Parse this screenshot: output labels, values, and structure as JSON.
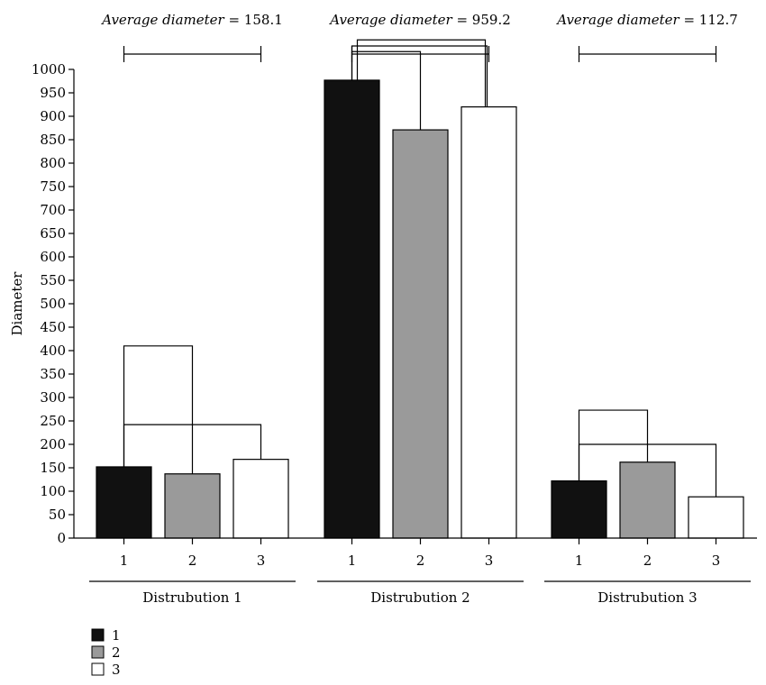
{
  "chart_data": {
    "type": "bar",
    "ylabel": "Diameter",
    "ylim": [
      0,
      1000
    ],
    "yticks": [
      0,
      50,
      100,
      150,
      200,
      250,
      300,
      350,
      400,
      450,
      500,
      550,
      600,
      650,
      700,
      750,
      800,
      850,
      900,
      950,
      1000
    ],
    "categories": [
      "1",
      "2",
      "3"
    ],
    "groups": [
      {
        "name": "Distrubution 1",
        "values": [
          152,
          137,
          168
        ],
        "annotation": {
          "prefix": "Average diameter",
          "value": "= 158.1"
        },
        "brackets": [
          {
            "from": 1,
            "to": 2,
            "y": 410
          },
          {
            "from": 1,
            "to": 3,
            "y": 242
          }
        ]
      },
      {
        "name": "Distrubution 2",
        "values": [
          977,
          871,
          920
        ],
        "annotation": {
          "prefix": "Average diameter",
          "value": "= 959.2"
        },
        "brackets": [
          {
            "from": 1,
            "to": 2,
            "y": 1038
          },
          {
            "from": 1,
            "to": 3,
            "y": 1050
          },
          {
            "from": 1,
            "to": 3,
            "y": 1063
          }
        ]
      },
      {
        "name": "Distrubution 3",
        "values": [
          122,
          162,
          88
        ],
        "annotation": {
          "prefix": "Average diameter",
          "value": "= 112.7"
        },
        "brackets": [
          {
            "from": 1,
            "to": 2,
            "y": 273
          },
          {
            "from": 1,
            "to": 3,
            "y": 200
          }
        ]
      }
    ],
    "legend": {
      "placement": "bottom-left",
      "items": [
        {
          "label": "1",
          "color": "#111111"
        },
        {
          "label": "2",
          "color": "#9a9a9a"
        },
        {
          "label": "3",
          "color": "#ffffff"
        }
      ]
    },
    "grid": false
  }
}
